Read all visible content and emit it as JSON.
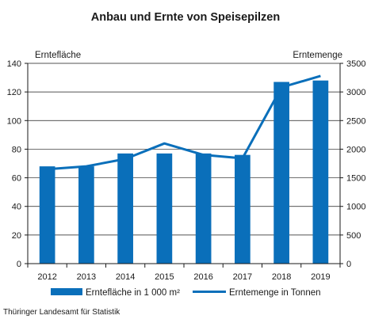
{
  "title": "Anbau und Ernte von Speisepilzen",
  "source": "Thüringer Landesamt für Statistik",
  "colors": {
    "bar": "#0a6fba",
    "line": "#0a6fba",
    "grid": "#1a1a1a"
  },
  "chart_data": {
    "type": "bar",
    "categories": [
      "2012",
      "2013",
      "2014",
      "2015",
      "2016",
      "2017",
      "2018",
      "2019"
    ],
    "series": [
      {
        "name": "Erntefläche in 1 000 m²",
        "type": "bar",
        "axis": "left",
        "values": [
          68,
          68,
          77,
          77,
          77,
          76,
          127,
          128
        ]
      },
      {
        "name": "Erntemenge in Tonnen",
        "type": "line",
        "axis": "right",
        "values": [
          1650,
          1700,
          1830,
          2100,
          1900,
          1840,
          3080,
          3280
        ]
      }
    ],
    "ylabel": "Erntefläche",
    "y2label": "Erntemenge",
    "ylim": [
      0,
      140
    ],
    "y2lim": [
      0,
      3500
    ],
    "yticks": [
      0,
      20,
      40,
      60,
      80,
      100,
      120,
      140
    ],
    "y2ticks": [
      0,
      500,
      1000,
      1500,
      2000,
      2500,
      3000,
      3500
    ],
    "grid": true,
    "legend": "bottom"
  }
}
